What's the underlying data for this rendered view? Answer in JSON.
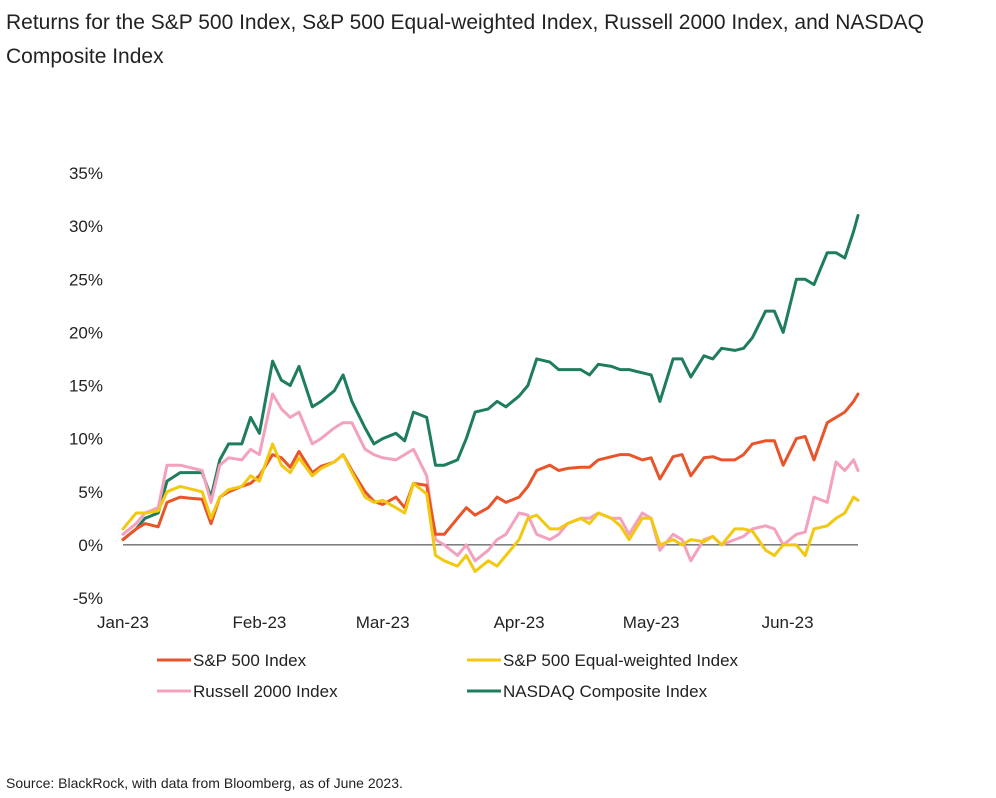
{
  "title": "Returns for the S&P 500 Index, S&P 500 Equal-weighted Index, Russell 2000 Index, and NASDAQ Composite Index",
  "source": "Source: BlackRock, with data from Bloomberg, as of June 2023.",
  "chart_data": {
    "type": "line",
    "title": "Returns for the S&P 500 Index, S&P 500 Equal-weighted Index, Russell 2000 Index, and NASDAQ Composite Index",
    "xlabel": "",
    "ylabel": "",
    "x_ticks": [
      "Jan-23",
      "Feb-23",
      "Mar-23",
      "Apr-23",
      "May-23",
      "Jun-23"
    ],
    "y_ticks": [
      "35%",
      "30%",
      "25%",
      "20%",
      "15%",
      "10%",
      "5%",
      "0%",
      "-5%"
    ],
    "ylim": [
      -5,
      35
    ],
    "xlim": [
      0,
      167
    ],
    "x_unit": "days since Jan-23",
    "grid": false,
    "legend_position": "bottom",
    "series": [
      {
        "name": "S&P 500 Index",
        "color": "#e8552a",
        "x": [
          0,
          3,
          5,
          8,
          10,
          13,
          15,
          18,
          20,
          22,
          24,
          27,
          29,
          31,
          34,
          36,
          38,
          40,
          43,
          45,
          48,
          50,
          52,
          55,
          57,
          59,
          62,
          64,
          66,
          69,
          71,
          73,
          76,
          78,
          80,
          83,
          85,
          87,
          90,
          92,
          94,
          97,
          99,
          101,
          104,
          106,
          108,
          111,
          113,
          115,
          118,
          120,
          122,
          125,
          127,
          129,
          132,
          134,
          136,
          139,
          141,
          143,
          146,
          148,
          150,
          153,
          155,
          157,
          160,
          162,
          164,
          166,
          167
        ],
        "values": [
          0.5,
          1.5,
          2.0,
          1.7,
          4.0,
          4.5,
          4.4,
          4.3,
          2.0,
          4.5,
          5.0,
          5.5,
          5.8,
          6.5,
          8.5,
          8.2,
          7.3,
          8.8,
          6.8,
          7.4,
          7.8,
          8.5,
          7.0,
          5.0,
          4.1,
          3.8,
          4.5,
          3.5,
          5.8,
          5.6,
          1.0,
          1.0,
          2.5,
          3.5,
          2.8,
          3.5,
          4.5,
          4.0,
          4.5,
          5.5,
          7.0,
          7.5,
          7.0,
          7.2,
          7.3,
          7.3,
          8.0,
          8.3,
          8.5,
          8.5,
          8.0,
          8.2,
          6.2,
          8.3,
          8.5,
          6.5,
          8.2,
          8.3,
          8.0,
          8.0,
          8.5,
          9.5,
          9.8,
          9.8,
          7.5,
          10.0,
          10.2,
          8.0,
          11.5,
          12.0,
          12.5,
          13.5,
          14.2
        ]
      },
      {
        "name": "S&P 500 Equal-weighted Index",
        "color": "#f2c811",
        "x": [
          0,
          3,
          5,
          8,
          10,
          13,
          15,
          18,
          20,
          22,
          24,
          27,
          29,
          31,
          34,
          36,
          38,
          40,
          43,
          45,
          48,
          50,
          52,
          55,
          57,
          59,
          62,
          64,
          66,
          69,
          71,
          73,
          76,
          78,
          80,
          83,
          85,
          87,
          90,
          92,
          94,
          97,
          99,
          101,
          104,
          106,
          108,
          111,
          113,
          115,
          118,
          120,
          122,
          125,
          127,
          129,
          132,
          134,
          136,
          139,
          141,
          143,
          146,
          148,
          150,
          153,
          155,
          157,
          160,
          162,
          164,
          166,
          167
        ],
        "values": [
          1.5,
          3.0,
          3.0,
          3.2,
          5.0,
          5.5,
          5.3,
          5.0,
          2.5,
          4.5,
          5.2,
          5.5,
          6.5,
          6.0,
          9.5,
          7.5,
          6.8,
          8.2,
          6.5,
          7.2,
          7.8,
          8.5,
          6.8,
          4.5,
          4.0,
          4.2,
          3.5,
          3.0,
          5.8,
          4.8,
          -1.0,
          -1.5,
          -2.0,
          -1.0,
          -2.5,
          -1.5,
          -2.0,
          -1.0,
          0.5,
          2.5,
          2.8,
          1.5,
          1.5,
          2.0,
          2.5,
          2.0,
          3.0,
          2.5,
          1.8,
          0.5,
          2.5,
          2.5,
          0.0,
          0.5,
          0.0,
          0.5,
          0.3,
          0.8,
          0.0,
          1.5,
          1.5,
          1.3,
          -0.5,
          -1.0,
          0.0,
          0.0,
          -1.0,
          1.5,
          1.8,
          2.5,
          3.0,
          4.5,
          4.2
        ]
      },
      {
        "name": "Russell 2000 Index",
        "color": "#f4a0bf",
        "x": [
          0,
          3,
          5,
          8,
          10,
          13,
          15,
          18,
          20,
          22,
          24,
          27,
          29,
          31,
          34,
          36,
          38,
          40,
          43,
          45,
          48,
          50,
          52,
          55,
          57,
          59,
          62,
          64,
          66,
          69,
          71,
          73,
          76,
          78,
          80,
          83,
          85,
          87,
          90,
          92,
          94,
          97,
          99,
          101,
          104,
          106,
          108,
          111,
          113,
          115,
          118,
          120,
          122,
          125,
          127,
          129,
          132,
          134,
          136,
          139,
          141,
          143,
          146,
          148,
          150,
          153,
          155,
          157,
          160,
          162,
          164,
          166,
          167
        ],
        "values": [
          1.0,
          2.0,
          3.0,
          3.5,
          7.5,
          7.5,
          7.3,
          7.0,
          4.0,
          7.5,
          8.2,
          8.0,
          9.0,
          8.5,
          14.2,
          12.8,
          12.0,
          12.5,
          9.5,
          10.0,
          11.0,
          11.5,
          11.5,
          9.0,
          8.5,
          8.2,
          8.0,
          8.5,
          9.0,
          6.5,
          0.5,
          0.0,
          -1.0,
          0.0,
          -1.5,
          -0.5,
          0.5,
          1.0,
          3.0,
          2.8,
          1.0,
          0.5,
          1.0,
          2.0,
          2.5,
          2.5,
          3.0,
          2.5,
          2.5,
          1.0,
          3.0,
          2.5,
          -0.5,
          1.0,
          0.5,
          -1.5,
          0.5,
          0.8,
          0.0,
          0.5,
          0.8,
          1.5,
          1.8,
          1.5,
          0.0,
          1.0,
          1.2,
          4.5,
          4.0,
          7.8,
          7.0,
          8.0,
          7.0
        ]
      },
      {
        "name": "NASDAQ Composite Index",
        "color": "#1e7d5a",
        "x": [
          0,
          3,
          5,
          8,
          10,
          13,
          15,
          18,
          20,
          22,
          24,
          27,
          29,
          31,
          34,
          36,
          38,
          40,
          43,
          45,
          48,
          50,
          52,
          55,
          57,
          59,
          62,
          64,
          66,
          69,
          71,
          73,
          76,
          78,
          80,
          83,
          85,
          87,
          90,
          92,
          94,
          97,
          99,
          101,
          104,
          106,
          108,
          111,
          113,
          115,
          118,
          120,
          122,
          125,
          127,
          129,
          132,
          134,
          136,
          139,
          141,
          143,
          146,
          148,
          150,
          153,
          155,
          157,
          160,
          162,
          164,
          166,
          167
        ],
        "values": [
          0.5,
          1.5,
          2.5,
          3.0,
          6.0,
          6.8,
          6.8,
          6.8,
          4.5,
          8.0,
          9.5,
          9.5,
          12.0,
          10.5,
          17.3,
          15.5,
          15.0,
          16.8,
          13.0,
          13.5,
          14.5,
          16.0,
          13.5,
          11.0,
          9.5,
          10.0,
          10.5,
          9.8,
          12.5,
          12.0,
          7.5,
          7.5,
          8.0,
          10.0,
          12.5,
          12.8,
          13.5,
          13.0,
          14.0,
          15.0,
          17.5,
          17.2,
          16.5,
          16.5,
          16.5,
          16.0,
          17.0,
          16.8,
          16.5,
          16.5,
          16.2,
          16.0,
          13.5,
          17.5,
          17.5,
          15.8,
          17.8,
          17.5,
          18.5,
          18.3,
          18.5,
          19.5,
          22.0,
          22.0,
          20.0,
          25.0,
          25.0,
          24.5,
          27.5,
          27.5,
          27.0,
          29.5,
          31.0
        ]
      }
    ]
  }
}
